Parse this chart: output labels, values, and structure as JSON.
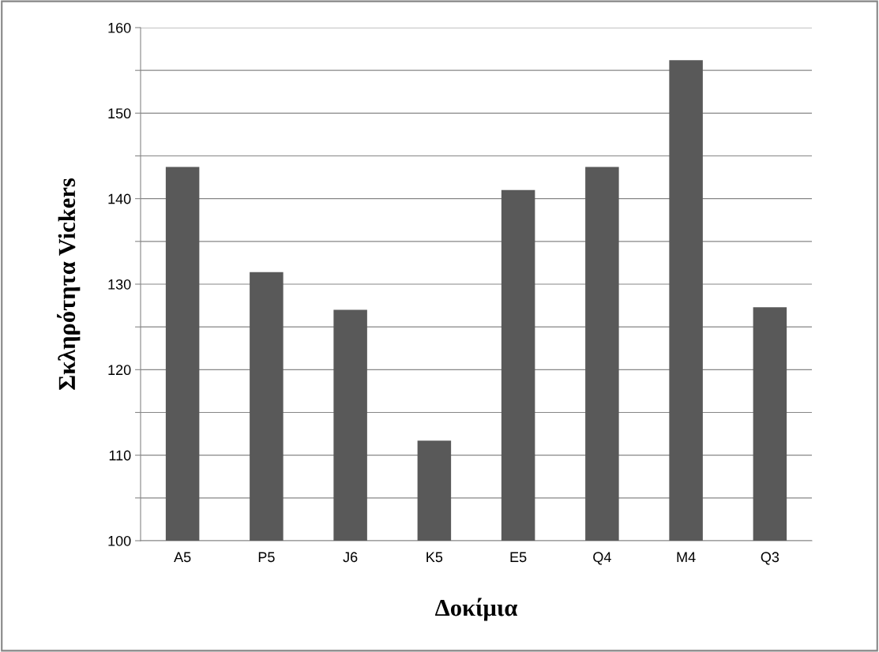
{
  "chart_data": {
    "type": "bar",
    "xlabel": "Δοκίμια",
    "ylabel": "Σκληρότητα Vickers",
    "categories": [
      "A5",
      "P5",
      "J6",
      "K5",
      "E5",
      "Q4",
      "M4",
      "Q3"
    ],
    "values": [
      143.7,
      131.4,
      127.0,
      111.7,
      141.0,
      143.7,
      156.2,
      127.3
    ],
    "color": "#595959",
    "ylim": [
      100,
      160
    ],
    "yticks": [
      100,
      {
        "value": 105,
        "label": null
      },
      110,
      {
        "value": 115,
        "label": null
      },
      120,
      {
        "value": 125,
        "label": null
      },
      130,
      {
        "value": 135,
        "label": null
      },
      140,
      {
        "value": 145,
        "label": null
      },
      150,
      {
        "value": 155,
        "label": null
      },
      160
    ],
    "grid": "y"
  }
}
